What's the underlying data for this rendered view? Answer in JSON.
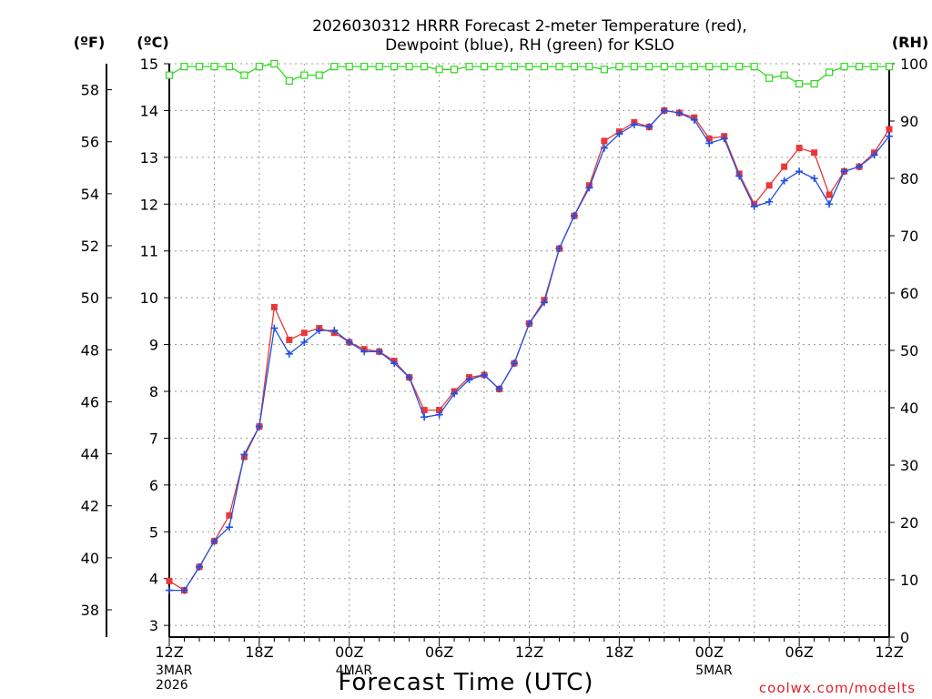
{
  "chart_data": {
    "type": "line",
    "title_line1": "2026030312 HRRR Forecast 2-meter Temperature (red),",
    "title_line2": "Dewpoint (blue), RH (green) for KSLO",
    "unit_f": "(ºF)",
    "unit_c": "(ºC)",
    "unit_rh": "(RH)",
    "xlabel": "Forecast Time (UTC)",
    "credit": "coolwx.com/modelts",
    "xlim": [
      0,
      48
    ],
    "ylim_c": [
      2.75,
      15
    ],
    "ylim_rh": [
      0,
      100
    ],
    "grid": true,
    "x_ticks": [
      {
        "x": 0,
        "label": "12Z",
        "sub": [
          "3MAR",
          "2026"
        ]
      },
      {
        "x": 6,
        "label": "18Z",
        "sub": []
      },
      {
        "x": 12,
        "label": "00Z",
        "sub": [
          "4MAR"
        ]
      },
      {
        "x": 18,
        "label": "06Z",
        "sub": []
      },
      {
        "x": 24,
        "label": "12Z",
        "sub": []
      },
      {
        "x": 30,
        "label": "18Z",
        "sub": []
      },
      {
        "x": 36,
        "label": "00Z",
        "sub": [
          "5MAR"
        ]
      },
      {
        "x": 42,
        "label": "06Z",
        "sub": []
      },
      {
        "x": 48,
        "label": "12Z",
        "sub": []
      }
    ],
    "c_ticks": [
      3,
      4,
      5,
      6,
      7,
      8,
      9,
      10,
      11,
      12,
      13,
      14,
      15
    ],
    "f_ticks": [
      38,
      40,
      42,
      44,
      46,
      48,
      50,
      52,
      54,
      56,
      58
    ],
    "rh_ticks": [
      0,
      10,
      20,
      30,
      40,
      50,
      60,
      70,
      80,
      90,
      100
    ],
    "x": [
      0,
      1,
      2,
      3,
      4,
      5,
      6,
      7,
      8,
      9,
      10,
      11,
      12,
      13,
      14,
      15,
      16,
      17,
      18,
      19,
      20,
      21,
      22,
      23,
      24,
      25,
      26,
      27,
      28,
      29,
      30,
      31,
      32,
      33,
      34,
      35,
      36,
      37,
      38,
      39,
      40,
      41,
      42,
      43,
      44,
      45,
      46,
      47,
      48
    ],
    "series": [
      {
        "name": "Temperature",
        "unit": "C",
        "color": "#e8383a",
        "values": [
          3.95,
          3.75,
          4.25,
          4.8,
          5.35,
          6.6,
          7.25,
          9.8,
          9.1,
          9.25,
          9.35,
          9.25,
          9.05,
          8.9,
          8.85,
          8.65,
          8.3,
          7.6,
          7.6,
          8.0,
          8.3,
          8.35,
          8.05,
          8.6,
          9.45,
          9.95,
          11.05,
          11.75,
          12.4,
          13.35,
          13.55,
          13.75,
          13.65,
          14.0,
          13.95,
          13.85,
          13.4,
          13.45,
          12.65,
          12.0,
          12.4,
          12.8,
          13.2,
          13.1,
          12.2,
          12.7,
          12.8,
          13.1,
          13.6
        ]
      },
      {
        "name": "Dewpoint",
        "unit": "C",
        "color": "#2050e0",
        "values": [
          3.75,
          3.75,
          4.25,
          4.8,
          5.1,
          6.65,
          7.25,
          9.35,
          8.8,
          9.05,
          9.3,
          9.3,
          9.05,
          8.85,
          8.85,
          8.6,
          8.3,
          7.45,
          7.5,
          7.95,
          8.25,
          8.35,
          8.05,
          8.6,
          9.45,
          9.9,
          11.05,
          11.75,
          12.35,
          13.2,
          13.5,
          13.7,
          13.65,
          14.0,
          13.95,
          13.8,
          13.3,
          13.4,
          12.6,
          11.95,
          12.05,
          12.5,
          12.7,
          12.55,
          12.0,
          12.7,
          12.8,
          13.05,
          13.45
        ]
      },
      {
        "name": "RH",
        "unit": "%",
        "color": "#30d820",
        "values": [
          98,
          99.5,
          99.5,
          99.5,
          99.5,
          98,
          99.5,
          100,
          97,
          98,
          98,
          99.5,
          99.5,
          99.5,
          99.5,
          99.5,
          99.5,
          99.5,
          99,
          99,
          99.5,
          99.5,
          99.5,
          99.5,
          99.5,
          99.5,
          99.5,
          99.5,
          99.5,
          99,
          99.5,
          99.5,
          99.5,
          99.5,
          99.5,
          99.5,
          99.5,
          99.5,
          99.5,
          99.5,
          97.5,
          98,
          96.5,
          96.5,
          98.5,
          99.5,
          99.5,
          99.5,
          99.5
        ]
      }
    ]
  }
}
